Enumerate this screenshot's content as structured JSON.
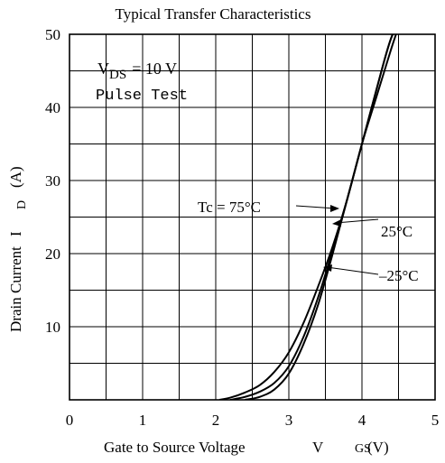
{
  "chart_data": {
    "type": "line",
    "title": "Typical Transfer Characteristics",
    "xlabel": "Gate to Source Voltage",
    "xlabel_symbol": "V",
    "xlabel_subscript": "GS",
    "xlabel_unit": "(V)",
    "ylabel": "Drain Current",
    "ylabel_symbol": "I",
    "ylabel_subscript": "D",
    "ylabel_unit": "(A)",
    "xlim": [
      0,
      5
    ],
    "ylim": [
      0,
      50
    ],
    "x_ticks": [
      "0",
      "1",
      "2",
      "3",
      "4",
      "5"
    ],
    "y_ticks": [
      "10",
      "20",
      "30",
      "40",
      "50"
    ],
    "grid": true,
    "condition_line1_main": "V",
    "condition_line1_sub": "DS",
    "condition_line1_rest": "= 10 V",
    "condition_line2": "Pulse Test",
    "series": [
      {
        "name": "Tc = 75°C",
        "x": [
          2.05,
          2.2,
          2.4,
          2.6,
          2.8,
          3.0,
          3.2,
          3.4,
          3.6,
          3.8,
          4.0,
          4.2,
          4.4,
          4.5
        ],
        "y": [
          0,
          0.3,
          1.0,
          2.0,
          3.8,
          6.5,
          10.5,
          15.5,
          21.0,
          27.5,
          35.0,
          41.5,
          48.0,
          51.0
        ]
      },
      {
        "name": "25°C",
        "x": [
          2.2,
          2.4,
          2.6,
          2.8,
          3.0,
          3.2,
          3.4,
          3.6,
          3.8,
          4.0,
          4.2,
          4.4,
          4.55
        ],
        "y": [
          0,
          0.4,
          1.1,
          2.3,
          4.6,
          8.6,
          14.0,
          20.5,
          27.5,
          35.0,
          42.5,
          49.5,
          52.0
        ]
      },
      {
        "name": "–25°C",
        "x": [
          2.4,
          2.6,
          2.8,
          3.0,
          3.2,
          3.4,
          3.6,
          3.8,
          4.0,
          4.2,
          4.4,
          4.6
        ],
        "y": [
          0,
          0.4,
          1.4,
          3.6,
          7.6,
          13.0,
          20.0,
          27.5,
          35.0,
          42.5,
          49.5,
          53.0
        ]
      }
    ]
  }
}
